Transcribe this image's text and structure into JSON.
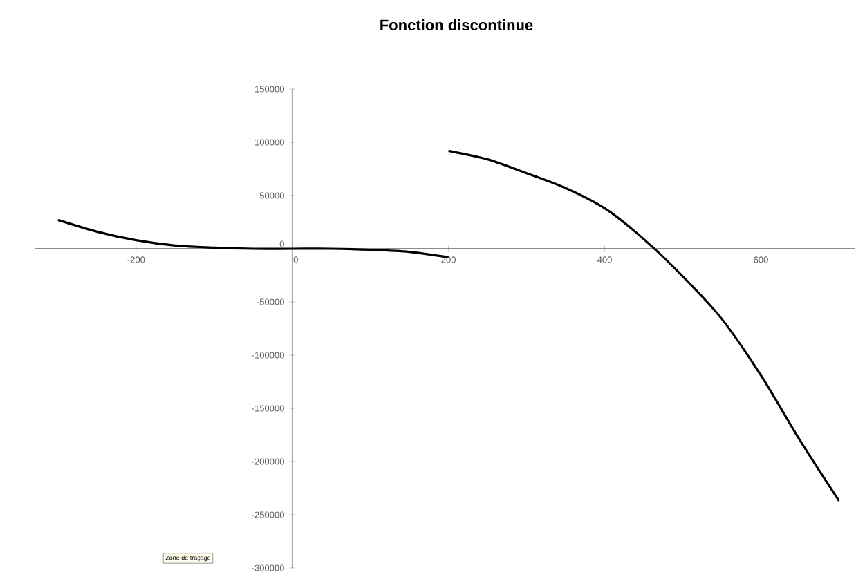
{
  "chart_data": {
    "type": "line",
    "title": "Fonction discontinue",
    "series": [
      {
        "color": "#000000",
        "x": [
          -300,
          -250,
          -200,
          -150,
          -100,
          -50,
          0,
          50,
          100,
          150,
          200
        ],
        "values": [
          27000,
          16000,
          8000,
          3000,
          1000,
          0,
          0,
          0,
          -1000,
          -3000,
          -8000
        ]
      },
      {
        "color": "#000000",
        "x": [
          200,
          250,
          300,
          350,
          400,
          450,
          500,
          550,
          600,
          650,
          700
        ],
        "values": [
          92000,
          84000,
          71000,
          57000,
          38000,
          9000,
          -26000,
          -66000,
          -119000,
          -180000,
          -237000
        ]
      }
    ],
    "xlim": [
      -330,
      720
    ],
    "xticks": [
      -200,
      0,
      200,
      400,
      600
    ],
    "ylim": [
      -300000,
      150000
    ],
    "yticks": [
      -300000,
      -250000,
      -200000,
      -150000,
      -100000,
      -50000,
      0,
      50000,
      100000,
      150000
    ],
    "marker": "none",
    "line_style": "solid",
    "annotations": [
      "Zone de traçage"
    ]
  }
}
